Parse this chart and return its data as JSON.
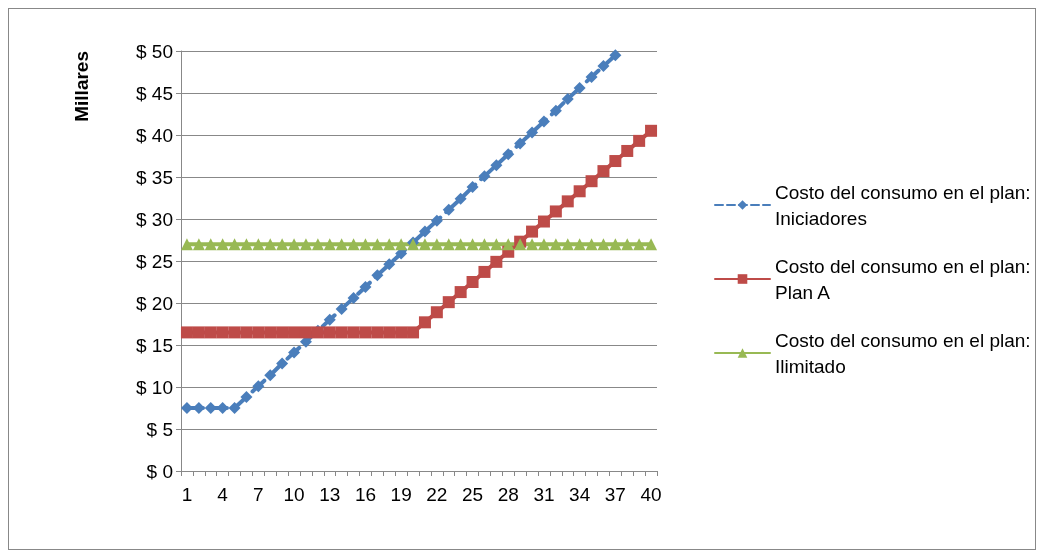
{
  "chart_data": {
    "type": "line",
    "ylabel": "Millares",
    "categories": [
      "1",
      null,
      null,
      "4",
      null,
      null,
      "7",
      null,
      null,
      "10",
      null,
      null,
      "13",
      null,
      null,
      "16",
      null,
      null,
      "19",
      null,
      null,
      "22",
      null,
      null,
      "25",
      null,
      null,
      "28",
      null,
      null,
      "31",
      null,
      null,
      "34",
      null,
      null,
      "37",
      null,
      null,
      "40"
    ],
    "series": [
      {
        "name": "Costo del consumo en el plan: Iniciadores",
        "color": "#4a7ebb",
        "marker": "diamond",
        "line_style": "dashed",
        "values": [
          7.5,
          7.5,
          7.5,
          7.5,
          7.5,
          8.8,
          10.1,
          11.4,
          12.8,
          14.1,
          15.4,
          16.7,
          18.0,
          19.3,
          20.6,
          21.9,
          23.3,
          24.6,
          25.9,
          27.2,
          28.5,
          29.8,
          31.1,
          32.4,
          33.8,
          35.1,
          36.4,
          37.7,
          39.0,
          40.3,
          41.6,
          42.9,
          44.3,
          45.6,
          46.9,
          48.2,
          49.5,
          null,
          null,
          null
        ]
      },
      {
        "name": "Costo del consumo en el plan: Plan A",
        "color": "#be4b48",
        "marker": "square",
        "line_style": "solid",
        "values": [
          16.5,
          16.5,
          16.5,
          16.5,
          16.5,
          16.5,
          16.5,
          16.5,
          16.5,
          16.5,
          16.5,
          16.5,
          16.5,
          16.5,
          16.5,
          16.5,
          16.5,
          16.5,
          16.5,
          16.5,
          17.7,
          18.9,
          20.1,
          21.3,
          22.5,
          23.7,
          24.9,
          26.1,
          27.3,
          28.5,
          29.7,
          30.9,
          32.1,
          33.3,
          34.5,
          35.7,
          36.9,
          38.1,
          39.3,
          40.5
        ]
      },
      {
        "name": "Costo del consumo en el plan: Ilimitado",
        "color": "#98b954",
        "marker": "triangle",
        "line_style": "solid",
        "values": [
          27,
          27,
          27,
          27,
          27,
          27,
          27,
          27,
          27,
          27,
          27,
          27,
          27,
          27,
          27,
          27,
          27,
          27,
          27,
          27,
          27,
          27,
          27,
          27,
          27,
          27,
          27,
          27,
          27,
          27,
          27,
          27,
          27,
          27,
          27,
          27,
          27,
          27,
          27,
          27
        ]
      }
    ],
    "ylim": [
      0,
      50
    ],
    "yticks": [
      {
        "value": 0,
        "label": "$ 0"
      },
      {
        "value": 5,
        "label": "$ 5"
      },
      {
        "value": 10,
        "label": "$ 10"
      },
      {
        "value": 15,
        "label": "$ 15"
      },
      {
        "value": 20,
        "label": "$ 20"
      },
      {
        "value": 25,
        "label": "$ 25"
      },
      {
        "value": 30,
        "label": "$ 30"
      },
      {
        "value": 35,
        "label": "$ 35"
      },
      {
        "value": 40,
        "label": "$ 40"
      },
      {
        "value": 45,
        "label": "$ 45"
      },
      {
        "value": 50,
        "label": "$ 50"
      }
    ],
    "grid": "y",
    "legend": "right"
  }
}
